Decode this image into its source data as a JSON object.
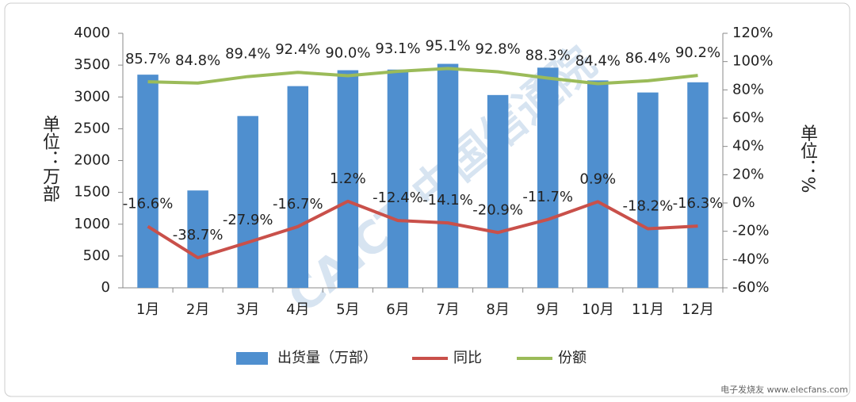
{
  "chart_data": {
    "type": "bar",
    "y_label": "单位：万部",
    "y2_label": "单位：%",
    "watermark": "CAICT 中国信通院",
    "source": "电子发烧友 www.elecfans.com",
    "categories": [
      "1月",
      "2月",
      "3月",
      "4月",
      "5月",
      "6月",
      "7月",
      "8月",
      "9月",
      "10月",
      "11月",
      "12月"
    ],
    "series": [
      {
        "name": "出货量（万部）",
        "type": "bar",
        "color": "#4f8fcf",
        "values": [
          3350,
          1530,
          2700,
          3170,
          3420,
          3430,
          3520,
          3030,
          3460,
          3260,
          3070,
          3230
        ]
      },
      {
        "name": "同比",
        "type": "line",
        "axis": "y2",
        "color": "#c9504a",
        "values": [
          -16.6,
          -38.7,
          -27.9,
          -16.7,
          1.2,
          -12.4,
          -14.1,
          -20.9,
          -11.7,
          0.9,
          -18.2,
          -16.3
        ],
        "value_labels": [
          "-16.6%",
          "-38.7%",
          "-27.9%",
          "-16.7%",
          "1.2%",
          "-12.4%",
          "-14.1%",
          "-20.9%",
          "-11.7%",
          "0.9%",
          "-18.2%",
          "-16.3%"
        ]
      },
      {
        "name": "份额",
        "type": "line",
        "axis": "y2",
        "color": "#9bbb59",
        "values": [
          85.7,
          84.8,
          89.4,
          92.4,
          90.0,
          93.1,
          95.1,
          92.8,
          88.3,
          84.4,
          86.4,
          90.2
        ],
        "value_labels": [
          "85.7%",
          "84.8%",
          "89.4%",
          "92.4%",
          "90.0%",
          "93.1%",
          "95.1%",
          "92.8%",
          "88.3%",
          "84.4%",
          "86.4%",
          "90.2%"
        ]
      }
    ],
    "ylim": [
      0,
      4000
    ],
    "yticks": [
      0,
      500,
      1000,
      1500,
      2000,
      2500,
      3000,
      3500,
      4000
    ],
    "y2lim": [
      -60,
      120
    ],
    "y2ticks": [
      {
        "value": -60,
        "label": "-60%"
      },
      {
        "value": -40,
        "label": "-40%"
      },
      {
        "value": -20,
        "label": "-20%"
      },
      {
        "value": 0,
        "label": "0%"
      },
      {
        "value": 20,
        "label": "20%"
      },
      {
        "value": 40,
        "label": "40%"
      },
      {
        "value": 60,
        "label": "60%"
      },
      {
        "value": 80,
        "label": "80%"
      },
      {
        "value": 100,
        "label": "100%"
      },
      {
        "value": 120,
        "label": "120%"
      }
    ],
    "legend": "bottom"
  }
}
